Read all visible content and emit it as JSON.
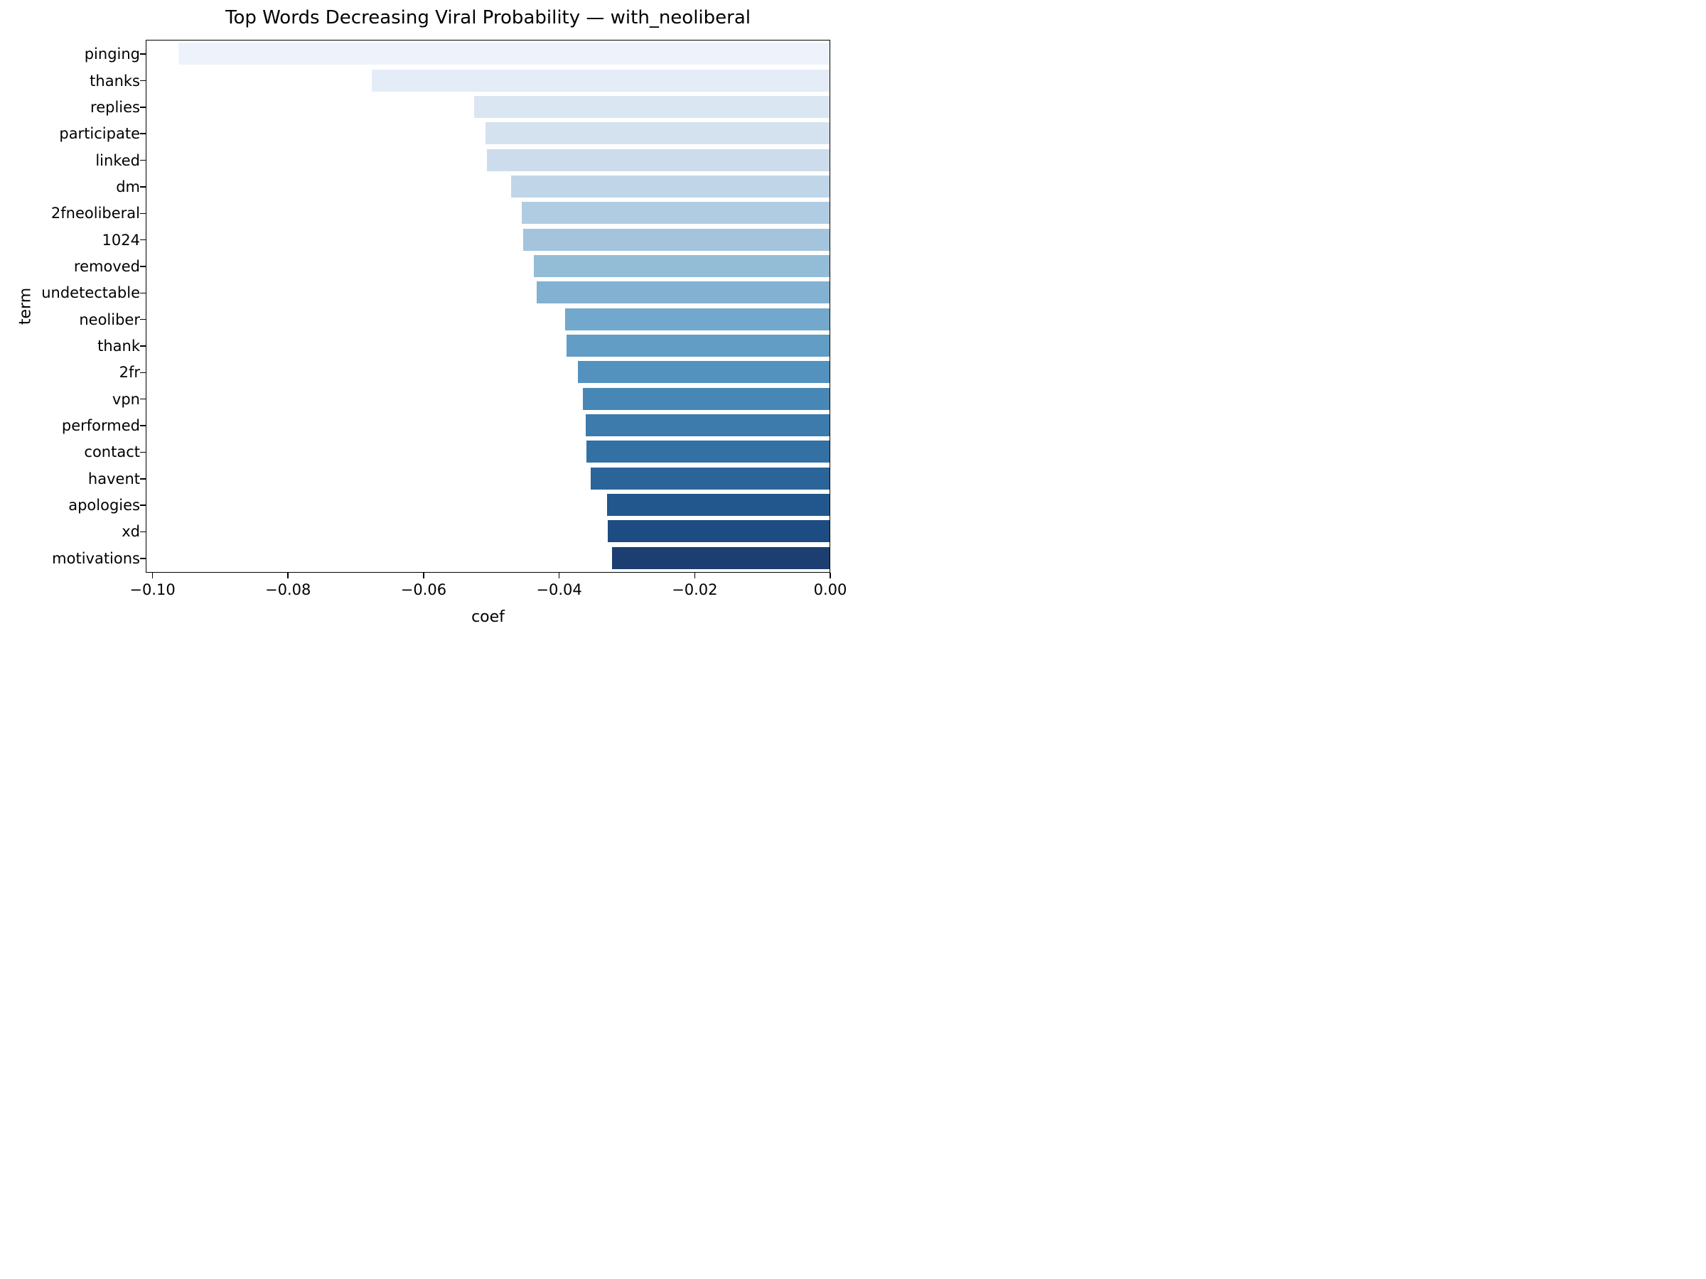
{
  "chart_data": {
    "type": "bar",
    "orientation": "horizontal",
    "title": "Top Words Decreasing Viral Probability — with_neoliberal",
    "xlabel": "coef",
    "ylabel": "term",
    "categories": [
      "pinging",
      "thanks",
      "replies",
      "participate",
      "linked",
      "dm",
      "2fneoliberal",
      "1024",
      "removed",
      "undetectable",
      "neoliber",
      "thank",
      "2fr",
      "vpn",
      "performed",
      "contact",
      "havent",
      "apologies",
      "xd",
      "motivations"
    ],
    "values": [
      -0.0963,
      -0.0677,
      -0.0526,
      -0.0509,
      -0.0507,
      -0.0471,
      -0.0455,
      -0.0453,
      -0.0437,
      -0.0433,
      -0.0391,
      -0.0389,
      -0.0372,
      -0.0365,
      -0.0361,
      -0.0359,
      -0.0353,
      -0.0329,
      -0.0328,
      -0.0322
    ],
    "bar_colors": [
      "#eef3fb",
      "#e3ecf7",
      "#dbe6f3",
      "#d4e1ef",
      "#ccdcec",
      "#c0d6e8",
      "#b0cce2",
      "#a3c4dc",
      "#93bcd7",
      "#82b1d1",
      "#71a8cc",
      "#619dc5",
      "#5392be",
      "#4787b6",
      "#3d7bad",
      "#3370a4",
      "#2a6499",
      "#22578d",
      "#1d4c82",
      "#1c3e70"
    ],
    "palette": "Blues",
    "xlim": [
      -0.101,
      0
    ],
    "x_ticks": [
      -0.1,
      -0.08,
      -0.06,
      -0.04,
      -0.02,
      0.0
    ],
    "x_tick_labels": [
      "−0.10",
      "−0.08",
      "−0.06",
      "−0.04",
      "−0.02",
      "0.00"
    ],
    "grid": false,
    "legend": "none",
    "spine_color": "#000000",
    "background_color": "#ffffff"
  }
}
